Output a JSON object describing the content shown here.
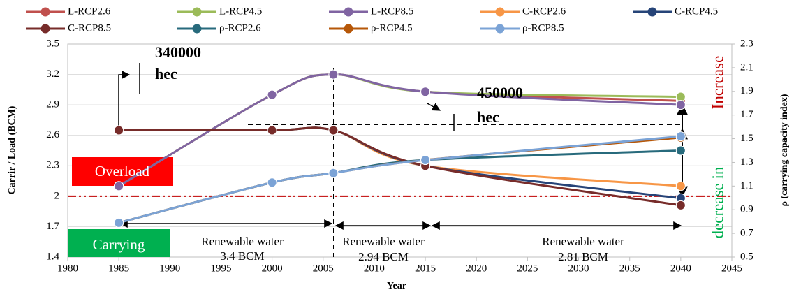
{
  "chart_data": {
    "type": "line",
    "x_label": "Year",
    "y_label": "Carrir / Load (BCM)",
    "y2_label": "ρ (carrying capacity index)",
    "x": [
      1985,
      2000,
      2006,
      2015,
      2040
    ],
    "xlim": [
      1980,
      2045
    ],
    "xticks": [
      1980,
      1985,
      1990,
      1995,
      2000,
      2005,
      2010,
      2015,
      2020,
      2025,
      2030,
      2035,
      2040,
      2045
    ],
    "ylim": [
      1.4,
      3.5
    ],
    "yticks": [
      1.4,
      1.7,
      2,
      2.3,
      2.6,
      2.9,
      3.2,
      3.5
    ],
    "y2lim": [
      0.5,
      2.3
    ],
    "y2ticks": [
      0.5,
      0.7,
      0.9,
      1.1,
      1.3,
      1.5,
      1.7,
      1.9,
      2.1,
      2.3
    ],
    "grid": true,
    "hline": 2,
    "hline_color": "#c00000",
    "series": [
      {
        "name": "L-RCP2.6",
        "color": "#c0504d",
        "values": [
          2.1,
          3.0,
          3.2,
          3.03,
          2.94
        ]
      },
      {
        "name": "L-RCP4.5",
        "color": "#9bbb59",
        "values": [
          2.1,
          3.0,
          3.2,
          3.03,
          2.98
        ]
      },
      {
        "name": "L-RCP8.5",
        "color": "#8064a2",
        "values": [
          2.1,
          3.0,
          3.2,
          3.03,
          2.9
        ]
      },
      {
        "name": "C-RCP2.6",
        "color": "#f79646",
        "values": [
          2.65,
          2.65,
          2.65,
          2.3,
          2.1
        ]
      },
      {
        "name": "C-RCP4.5",
        "color": "#264478",
        "values": [
          2.65,
          2.65,
          2.65,
          2.3,
          1.98
        ]
      },
      {
        "name": "C-RCP8.5",
        "color": "#772c2a",
        "values": [
          2.65,
          2.65,
          2.65,
          2.3,
          1.91
        ]
      },
      {
        "name": "ρ-RCP2.6",
        "color": "#276a7c",
        "axis": "y2",
        "values": [
          0.79,
          1.13,
          1.21,
          1.32,
          1.4
        ]
      },
      {
        "name": "ρ-RCP4.5",
        "color": "#b65708",
        "axis": "y2",
        "values": [
          0.79,
          1.13,
          1.21,
          1.32,
          1.51
        ]
      },
      {
        "name": "ρ-RCP8.5",
        "color": "#7ba3d6",
        "axis": "y2",
        "values": [
          0.79,
          1.13,
          1.21,
          1.32,
          1.52
        ]
      }
    ],
    "annotations": {
      "area1": "340000",
      "area1_unit": "hec",
      "area2": "450000",
      "area2_unit": "hec",
      "overload": "Overload",
      "carrying": "Carrying",
      "water1": "Renewable water",
      "water1_amount": "3.4 BCM",
      "water2": "Renewable water",
      "water2_amount": "2.94 BCM",
      "water3": "Renewable water",
      "water3_amount": "2.81 BCM",
      "increase": "Increase",
      "decrease": "decrease in"
    }
  }
}
